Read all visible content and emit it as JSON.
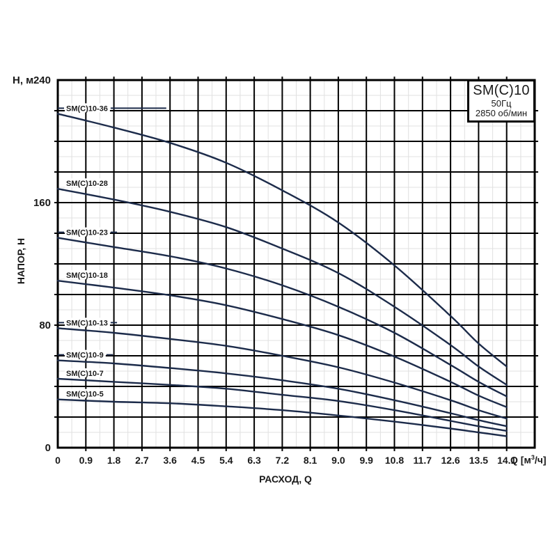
{
  "page": {
    "background": "#ffffff"
  },
  "title_box": {
    "model": "SM(C)10",
    "frequency": "50Гц",
    "speed": "2850 об/мин"
  },
  "chart_data": {
    "type": "line",
    "title": "SM(C)10 50Гц 2850 об/мин",
    "xlabel": "РАСХОД, Q",
    "ylabel": "НАПОР, Н",
    "x_axis": {
      "unit_prefix": "Q [м",
      "unit_sup": "3",
      "unit_suffix": "/ч]",
      "tick_labels": [
        "0",
        "0.9",
        "1.8",
        "2.7",
        "3.6",
        "4.5",
        "5.4",
        "6.3",
        "7.2",
        "8.1",
        "9.0",
        "9.9",
        "10.8",
        "11.7",
        "12.6",
        "13.5",
        "14.1"
      ],
      "major_step": 0.9,
      "max_data": 14.1,
      "major_columns": 17
    },
    "y_axis": {
      "unit": "Н, м",
      "tick_labels": [
        "240",
        "160",
        "80",
        "0"
      ],
      "tick_values": [
        240,
        160,
        80,
        0
      ],
      "range": [
        0,
        240
      ],
      "major_step": 20,
      "minor_step": 10
    },
    "grid": {
      "visible": true,
      "x_minor_per_major": 2
    },
    "colors": {
      "curve": "#1c2b4a",
      "grid_major": "#000000",
      "grid_minor": "#e0e0e0",
      "text": "#1a1a1a",
      "background": "#ffffff"
    },
    "series": [
      {
        "name": "SM(C)10-36",
        "leader_to_q": 3.48,
        "points": [
          [
            0,
            218
          ],
          [
            1.8,
            209
          ],
          [
            3.6,
            199
          ],
          [
            5.4,
            186
          ],
          [
            7.2,
            168
          ],
          [
            9,
            147
          ],
          [
            10.8,
            119
          ],
          [
            12.6,
            86
          ],
          [
            13.5,
            68
          ],
          [
            14.1,
            53
          ]
        ]
      },
      {
        "name": "SM(C)10-28",
        "leader_to_q": null,
        "points": [
          [
            0,
            169
          ],
          [
            1.8,
            162
          ],
          [
            3.6,
            154
          ],
          [
            5.4,
            144
          ],
          [
            7.2,
            130
          ],
          [
            9,
            114
          ],
          [
            10.8,
            92
          ],
          [
            12.6,
            67
          ],
          [
            13.5,
            53
          ],
          [
            14.1,
            41
          ]
        ]
      },
      {
        "name": "SM(C)10-23",
        "leader_to_q": 1.9,
        "points": [
          [
            0,
            137
          ],
          [
            1.8,
            131
          ],
          [
            3.6,
            125
          ],
          [
            5.4,
            117
          ],
          [
            7.2,
            106
          ],
          [
            9,
            92
          ],
          [
            10.8,
            75
          ],
          [
            12.6,
            54
          ],
          [
            13.5,
            43
          ],
          [
            14.1,
            33.5
          ]
        ]
      },
      {
        "name": "SM(C)10-18",
        "leader_to_q": null,
        "points": [
          [
            0,
            109
          ],
          [
            1.8,
            104.5
          ],
          [
            3.6,
            99.5
          ],
          [
            5.4,
            93
          ],
          [
            7.2,
            84
          ],
          [
            9,
            73.5
          ],
          [
            10.8,
            59.5
          ],
          [
            12.6,
            43
          ],
          [
            13.5,
            34
          ],
          [
            14.1,
            26.5
          ]
        ]
      },
      {
        "name": "SM(C)10-13",
        "leader_to_q": 1.9,
        "points": [
          [
            0,
            78
          ],
          [
            1.8,
            75
          ],
          [
            3.6,
            71
          ],
          [
            5.4,
            66.5
          ],
          [
            7.2,
            60
          ],
          [
            9,
            52.5
          ],
          [
            10.8,
            42.5
          ],
          [
            12.6,
            31
          ],
          [
            13.5,
            24.5
          ],
          [
            14.1,
            19
          ]
        ]
      },
      {
        "name": "SM(C)10-9",
        "leader_to_q": 1.77,
        "points": [
          [
            0,
            57
          ],
          [
            1.8,
            55
          ],
          [
            3.6,
            52
          ],
          [
            5.4,
            48.5
          ],
          [
            7.2,
            44
          ],
          [
            9,
            38.5
          ],
          [
            10.8,
            31
          ],
          [
            12.6,
            22.5
          ],
          [
            13.5,
            18
          ],
          [
            14.1,
            14
          ]
        ]
      },
      {
        "name": "SM(C)10-7",
        "leader_to_q": null,
        "points": [
          [
            0,
            45
          ],
          [
            1.8,
            43
          ],
          [
            3.6,
            41
          ],
          [
            5.4,
            38.5
          ],
          [
            7.2,
            34.5
          ],
          [
            9,
            30.5
          ],
          [
            10.8,
            24.5
          ],
          [
            12.6,
            17.5
          ],
          [
            13.5,
            14
          ],
          [
            14.1,
            11
          ]
        ]
      },
      {
        "name": "SM(C)10-5",
        "leader_to_q": null,
        "points": [
          [
            0,
            31.5
          ],
          [
            1.8,
            30
          ],
          [
            3.6,
            29
          ],
          [
            5.4,
            27
          ],
          [
            7.2,
            24.5
          ],
          [
            9,
            21
          ],
          [
            10.8,
            17
          ],
          [
            12.6,
            12.5
          ],
          [
            13.5,
            10
          ],
          [
            14.1,
            7.5
          ]
        ]
      }
    ]
  }
}
